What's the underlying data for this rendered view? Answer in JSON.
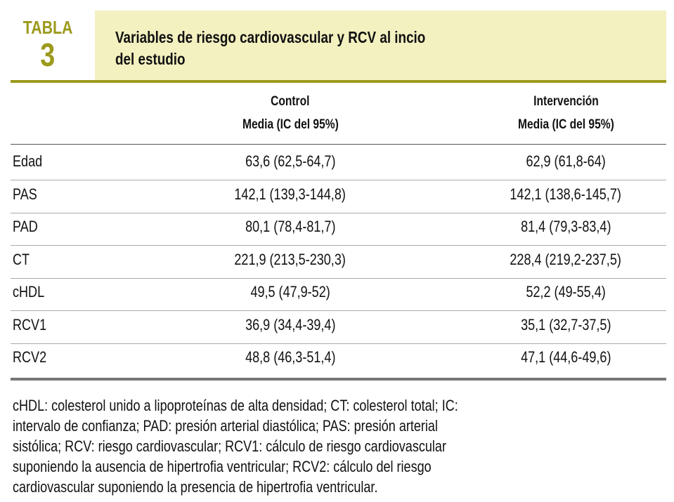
{
  "header": {
    "label": "TABLA",
    "number": "3",
    "title_lines": [
      "Variables de riesgo cardiovascular y RCV al incio",
      "del estudio"
    ]
  },
  "table": {
    "columns": [
      [
        "Control",
        "Media (IC del 95%)"
      ],
      [
        "Intervención",
        "Media (IC del 95%)"
      ]
    ],
    "rows": [
      [
        "Edad",
        "63,6 (62,5-64,7)",
        "62,9 (61,8-64)"
      ],
      [
        "PAS",
        "142,1 (139,3-144,8)",
        "142,1 (138,6-145,7)"
      ],
      [
        "PAD",
        "80,1 (78,4-81,7)",
        "81,4 (79,3-83,4)"
      ],
      [
        "CT",
        "221,9 (213,5-230,3)",
        "228,4 (219,2-237,5)"
      ],
      [
        "cHDL",
        "49,5 (47,9-52)",
        "52,2 (49-55,4)"
      ],
      [
        "RCV1",
        "36,9 (34,4-39,4)",
        "35,1 (32,7-37,5)"
      ],
      [
        "RCV2",
        "48,8 (46,3-51,4)",
        "47,1 (44,6-49,6)"
      ]
    ]
  },
  "footnote": {
    "lines": [
      "cHDL: colesterol unido a lipoproteínas de alta densidad; CT: colesterol total; IC:",
      "intervalo de confianza; PAD: presión arterial diastólica; PAS: presión arterial",
      "sistólica; RCV: riesgo cardiovascular; RCV1: cálculo de riesgo cardiovascular",
      "suponiendo la ausencia de hipertrofia ventricular; RCV2: cálculo del riesgo",
      "cardiovascular suponiendo la presencia de hipertrofia ventricular."
    ]
  }
}
